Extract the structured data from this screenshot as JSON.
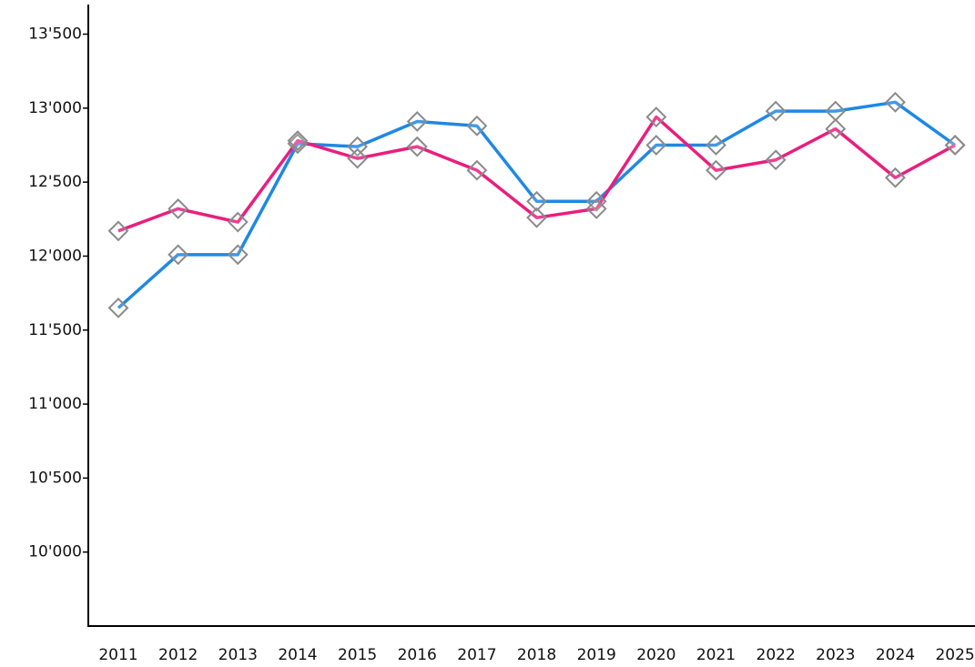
{
  "chart_data": {
    "type": "line",
    "categories": [
      "2011",
      "2012",
      "2013",
      "2014",
      "2015",
      "2016",
      "2017",
      "2018",
      "2019",
      "2020",
      "2021",
      "2022",
      "2023",
      "2024",
      "2025"
    ],
    "series": [
      {
        "color": "#1e88e5",
        "values": [
          11650,
          12010,
          12010,
          12760,
          12740,
          12910,
          12880,
          12370,
          12370,
          12750,
          12750,
          12980,
          12980,
          13040,
          12750
        ]
      },
      {
        "color": "#e91e7e",
        "values": [
          12170,
          12320,
          12230,
          12780,
          12660,
          12740,
          12580,
          12260,
          12320,
          12940,
          12580,
          12650,
          12860,
          12530,
          12750
        ]
      }
    ],
    "marker_color": "#8a8a8a",
    "ylim": [
      9500,
      13700
    ],
    "yticks": [
      {
        "value": 10000,
        "label": "10'000"
      },
      {
        "value": 10500,
        "label": "10'500"
      },
      {
        "value": 11000,
        "label": "11'000"
      },
      {
        "value": 11500,
        "label": "11'500"
      },
      {
        "value": 12000,
        "label": "12'000"
      },
      {
        "value": 12500,
        "label": "12'500"
      },
      {
        "value": 13000,
        "label": "13'000"
      },
      {
        "value": 13500,
        "label": "13'500"
      }
    ]
  }
}
